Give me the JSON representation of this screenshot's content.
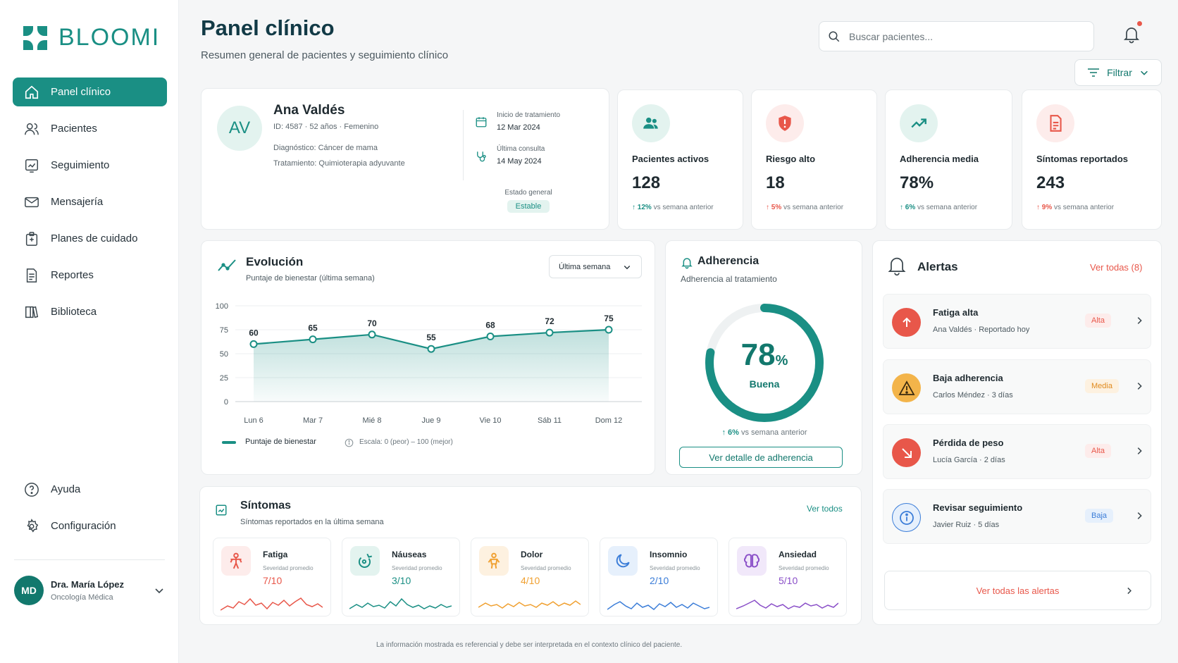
{
  "brand": {
    "name": "BLOOMI",
    "color": "#1a8f84"
  },
  "sidebar": {
    "items": [
      {
        "label": "Panel clínico",
        "icon": "home-icon"
      },
      {
        "label": "Pacientes",
        "icon": "users-icon"
      },
      {
        "label": "Seguimiento",
        "icon": "chart-check-icon"
      },
      {
        "label": "Mensajería",
        "icon": "mail-icon"
      },
      {
        "label": "Planes de cuidado",
        "icon": "clipboard-icon"
      },
      {
        "label": "Reportes",
        "icon": "document-icon"
      },
      {
        "label": "Biblioteca",
        "icon": "book-icon"
      }
    ],
    "bottom": [
      {
        "label": "Ayuda",
        "icon": "help-icon"
      },
      {
        "label": "Configuración",
        "icon": "gear-icon"
      }
    ],
    "user": {
      "initials": "MD",
      "name": "Dra. María López",
      "role": "Oncología Médica"
    }
  },
  "header": {
    "title": "Panel clínico",
    "subtitle": "Resumen general de pacientes y seguimiento clínico",
    "search_placeholder": "Buscar pacientes...",
    "filter_label": "Filtrar"
  },
  "patient": {
    "initials": "AV",
    "name": "Ana Valdés",
    "meta": "ID: 4587 · 52 años · Femenino",
    "diagnosis": "Diagnóstico: Cáncer de mama",
    "treatment": "Tratamiento: Quimioterapia adyuvante",
    "start_label": "Inicio de tratamiento",
    "start_value": "12 Mar 2024",
    "last_label": "Última consulta",
    "last_value": "14 May 2024",
    "status_label": "Estado general",
    "status_value": "Estable"
  },
  "kpis": [
    {
      "label": "Pacientes activos",
      "value": "128",
      "delta": "12%",
      "delta_text": "vs semana anterior",
      "color": "#1a8f84",
      "bg": "#e3f3ef",
      "icon": "users-icon"
    },
    {
      "label": "Riesgo alto",
      "value": "18",
      "delta": "5%",
      "delta_text": "vs semana anterior",
      "color": "#e8574a",
      "bg": "#fdeceb",
      "icon": "shield-alert-icon"
    },
    {
      "label": "Adherencia media",
      "value": "78%",
      "delta": "6%",
      "delta_text": "vs semana anterior",
      "color": "#1a8f84",
      "bg": "#e3f3ef",
      "icon": "trend-up-icon"
    },
    {
      "label": "Síntomas reportados",
      "value": "243",
      "delta": "9%",
      "delta_text": "vs semana anterior",
      "color": "#e8574a",
      "bg": "#fdeceb",
      "icon": "report-icon"
    }
  ],
  "evolution": {
    "title": "Evolución",
    "subtitle": "Puntaje de bienestar (última semana)",
    "range": "Última semana",
    "legend": "Puntaje de bienestar",
    "scale_note": "Escala: 0 (peor) – 100 (mejor)"
  },
  "chart_data": {
    "type": "area",
    "categories": [
      "Lun 6",
      "Mar 7",
      "Mié 8",
      "Jue 9",
      "Vie 10",
      "Sáb 11",
      "Dom 12"
    ],
    "series": [
      {
        "name": "Puntaje de bienestar",
        "values": [
          60,
          65,
          70,
          55,
          68,
          72,
          75
        ]
      }
    ],
    "yticks": [
      0,
      25,
      50,
      75,
      100
    ],
    "ylim": [
      0,
      100
    ],
    "grid": true,
    "color": "#1a8f84"
  },
  "adherence": {
    "title": "Adherencia",
    "subtitle": "Adherencia al tratamiento",
    "value": "78",
    "unit": "%",
    "fraction": 0.78,
    "quality": "Buena",
    "delta": "6%",
    "delta_text": "vs semana anterior",
    "button": "Ver detalle de adherencia"
  },
  "alerts": {
    "title": "Alertas",
    "see_all": "Ver todas (8)",
    "footer_button": "Ver todas las alertas",
    "items": [
      {
        "title": "Fatiga alta",
        "sub": "Ana Valdés · Reportado hoy",
        "badge": "Alta",
        "badge_color": "#e8574a",
        "badge_bg": "#fdeceb",
        "icon": "arrow-up-icon",
        "icon_bg": "#e8574a"
      },
      {
        "title": "Baja adherencia",
        "sub": "Carlos Méndez · 3 días",
        "badge": "Media",
        "badge_color": "#e08a1e",
        "badge_bg": "#fdf1e0",
        "icon": "warning-icon",
        "icon_bg": "#f3b44a"
      },
      {
        "title": "Pérdida de peso",
        "sub": "Lucía García · 2 días",
        "badge": "Alta",
        "badge_color": "#e8574a",
        "badge_bg": "#fdeceb",
        "icon": "arrow-down-right-icon",
        "icon_bg": "#e8574a"
      },
      {
        "title": "Revisar seguimiento",
        "sub": "Javier Ruiz · 5 días",
        "badge": "Baja",
        "badge_color": "#3b7dd8",
        "badge_bg": "#e6f0fc",
        "icon": "info-icon",
        "icon_bg": "#e6f0fc"
      }
    ]
  },
  "symptoms": {
    "title": "Síntomas",
    "subtitle": "Síntomas reportados en la última semana",
    "see_all": "Ver todos",
    "severity_label": "Severidad promedio",
    "items": [
      {
        "name": "Fatiga",
        "value": "7/10",
        "color": "#e8574a",
        "bg": "#fdeceb",
        "icon": "person-icon"
      },
      {
        "name": "Náuseas",
        "value": "3/10",
        "color": "#1a8f84",
        "bg": "#e3f3ef",
        "icon": "nausea-icon"
      },
      {
        "name": "Dolor",
        "value": "4/10",
        "color": "#f0a030",
        "bg": "#fdf1e0",
        "icon": "pain-icon"
      },
      {
        "name": "Insomnio",
        "value": "2/10",
        "color": "#3b7dd8",
        "bg": "#e6f0fc",
        "icon": "moon-icon"
      },
      {
        "name": "Ansiedad",
        "value": "5/10",
        "color": "#8a4fc8",
        "bg": "#f1e8fa",
        "icon": "brain-icon"
      }
    ]
  },
  "footer": "La información mostrada es referencial y debe ser interpretada en el contexto clínico del paciente."
}
